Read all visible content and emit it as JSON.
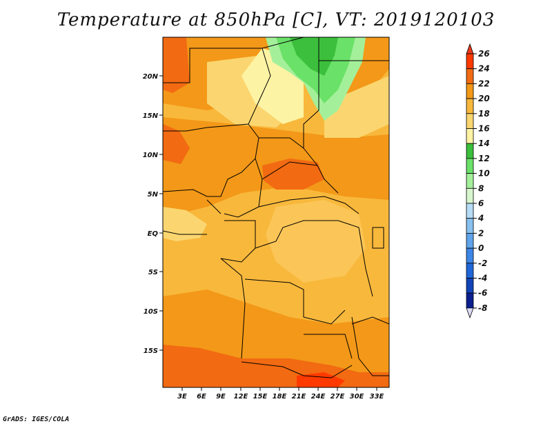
{
  "title": "Temperature at 850hPa [C], VT: 2019120103",
  "credit": "GrADS: IGES/COLA",
  "map": {
    "variable": "Temperature at 850hPa",
    "units": "C",
    "valid_time": "2019120103",
    "lat_ticks": [
      "20N",
      "15N",
      "10N",
      "5N",
      "EQ",
      "5S",
      "10S",
      "15S"
    ],
    "lon_ticks": [
      "3E",
      "6E",
      "9E",
      "12E",
      "15E",
      "18E",
      "21E",
      "24E",
      "27E",
      "30E",
      "33E"
    ]
  },
  "colorbar": {
    "labels": [
      "26",
      "24",
      "22",
      "20",
      "18",
      "16",
      "14",
      "12",
      "10",
      "8",
      "6",
      "4",
      "2",
      "0",
      "-2",
      "-4",
      "-6",
      "-8"
    ],
    "colors": [
      "#e8391c",
      "#ff3a00",
      "#f26a12",
      "#f39818",
      "#f8b83c",
      "#fbd670",
      "#fdf3a4",
      "#3cbf3c",
      "#6ae168",
      "#a4f09a",
      "#d8f6ce",
      "#b6dcf6",
      "#88c0ee",
      "#60a4ea",
      "#3c86e6",
      "#1f66d8",
      "#1044b8",
      "#0c1f8e",
      "#0a0a64"
    ]
  }
}
